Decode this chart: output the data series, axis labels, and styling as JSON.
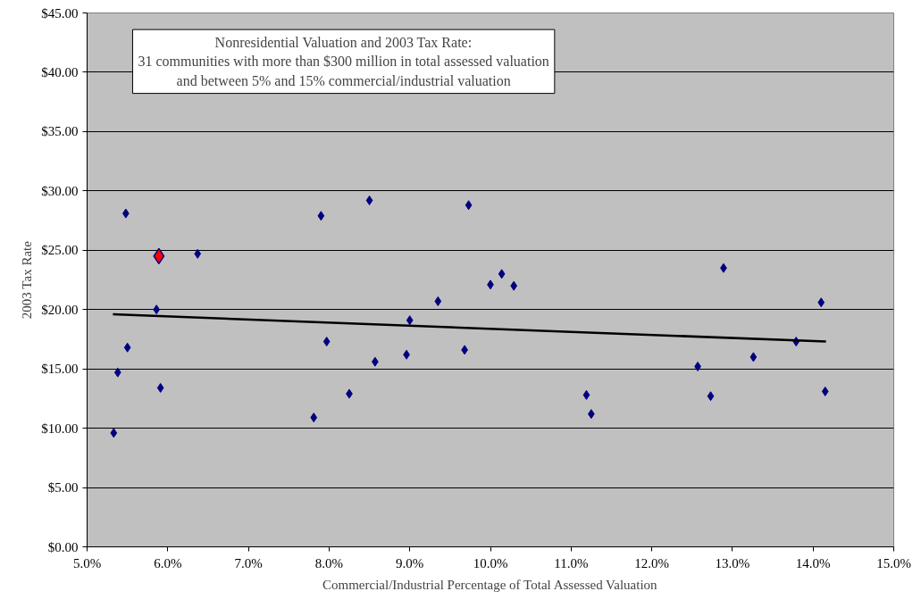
{
  "chart_data": {
    "type": "scatter",
    "title": "Nonresidential Valuation and 2003 Tax Rate:",
    "subtitle": "31 communities with more than $300 million in total assessed valuation\nand between 5% and 15% commercial/industrial valuation",
    "xlabel": "Commercial/Industrial Percentage of Total Assessed Valuation",
    "ylabel": "2003 Tax Rate",
    "marker": "diamond",
    "grid": "y",
    "xlim": [
      5,
      15
    ],
    "ylim": [
      0,
      45
    ],
    "xticks": [
      {
        "value": 5,
        "label": "5.0%"
      },
      {
        "value": 6,
        "label": "6.0%"
      },
      {
        "value": 7,
        "label": "7.0%"
      },
      {
        "value": 8,
        "label": "8.0%"
      },
      {
        "value": 9,
        "label": "9.0%"
      },
      {
        "value": 10,
        "label": "10.0%"
      },
      {
        "value": 11,
        "label": "11.0%"
      },
      {
        "value": 12,
        "label": "12.0%"
      },
      {
        "value": 13,
        "label": "13.0%"
      },
      {
        "value": 14,
        "label": "14.0%"
      },
      {
        "value": 15,
        "label": "15.0%"
      }
    ],
    "yticks": [
      {
        "value": 0,
        "label": "$0.00"
      },
      {
        "value": 5,
        "label": "$5.00"
      },
      {
        "value": 10,
        "label": "$10.00"
      },
      {
        "value": 15,
        "label": "$15.00"
      },
      {
        "value": 20,
        "label": "$20.00"
      },
      {
        "value": 25,
        "label": "$25.00"
      },
      {
        "value": 30,
        "label": "$30.00"
      },
      {
        "value": 35,
        "label": "$35.00"
      },
      {
        "value": 40,
        "label": "$40.00"
      },
      {
        "value": 45,
        "label": "$45.00"
      }
    ],
    "series": [
      {
        "color": "#000080",
        "x": [
          5.48,
          6.37,
          5.86,
          5.5,
          5.38,
          5.91,
          5.33,
          7.9,
          8.5,
          9.73,
          10.14,
          10.0,
          10.29,
          9.35,
          9.0,
          7.97,
          9.68,
          8.96,
          8.57,
          8.25,
          7.81,
          12.89,
          14.1,
          13.79,
          13.26,
          12.57,
          11.19,
          11.25,
          12.73,
          14.15
        ],
        "values": [
          28.1,
          24.7,
          20.0,
          16.8,
          14.7,
          13.4,
          9.6,
          27.9,
          29.2,
          28.8,
          23.0,
          22.1,
          22.0,
          20.7,
          19.1,
          17.3,
          16.6,
          16.2,
          15.6,
          12.9,
          10.9,
          23.5,
          20.6,
          17.3,
          16.0,
          15.2,
          12.8,
          11.2,
          12.7,
          13.1
        ]
      },
      {
        "color": "#ff0000",
        "x": [
          5.89
        ],
        "values": [
          24.5
        ]
      },
      {
        "type": "line",
        "marker": "none",
        "color": "#000000",
        "x": [
          5.32,
          14.16
        ],
        "values": [
          19.6,
          17.3
        ]
      }
    ]
  }
}
